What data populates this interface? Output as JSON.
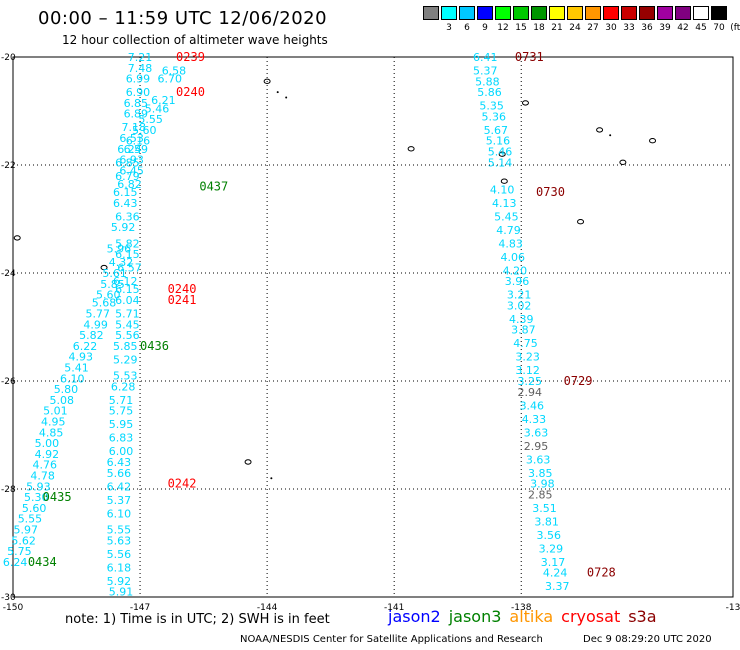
{
  "header": {
    "title": "00:00 – 11:59 UTC 12/06/2020",
    "subtitle": "12 hour collection of altimeter wave heights"
  },
  "color_scale": {
    "unit": "(ft)",
    "swatches": [
      {
        "label": "",
        "color": "#808080"
      },
      {
        "label": "3",
        "color": "#00ffff"
      },
      {
        "label": "6",
        "color": "#00c8ff"
      },
      {
        "label": "9",
        "color": "#0000ff"
      },
      {
        "label": "12",
        "color": "#00ff00"
      },
      {
        "label": "15",
        "color": "#00c800"
      },
      {
        "label": "18",
        "color": "#009600"
      },
      {
        "label": "21",
        "color": "#ffff00"
      },
      {
        "label": "24",
        "color": "#ffc800"
      },
      {
        "label": "27",
        "color": "#ff9600"
      },
      {
        "label": "30",
        "color": "#ff0000"
      },
      {
        "label": "33",
        "color": "#c80000"
      },
      {
        "label": "36",
        "color": "#960000"
      },
      {
        "label": "39",
        "color": "#a000a0"
      },
      {
        "label": "42",
        "color": "#800080"
      },
      {
        "label": "45",
        "color": "#ffffff"
      },
      {
        "label": "70",
        "color": "#000000"
      }
    ]
  },
  "axes": {
    "lon_labels": [
      "-150",
      "-147",
      "-144",
      "-141",
      "-138",
      "-13"
    ],
    "lat_labels": [
      "-20",
      "-22",
      "-24",
      "-26",
      "-28",
      "-30"
    ]
  },
  "colors": {
    "swh": "#00d8ff",
    "swh_grey": "#606060",
    "jason2": "#0000ff",
    "jason3": "#008000",
    "altika": "#ff9600",
    "cryosat": "#ff0000",
    "s3a": "#8b0000",
    "time_red": "#ff0000",
    "time_green": "#008000",
    "time_darkred": "#8b0000"
  },
  "tracks": [
    {
      "name": "track-a",
      "time_labels": [
        {
          "text": "0239",
          "lon": -146.15,
          "lat": -20.0,
          "color": "time_red"
        },
        {
          "text": "0240",
          "lon": -146.15,
          "lat": -20.65,
          "color": "time_red"
        },
        {
          "text": "0437",
          "lon": -145.6,
          "lat": -22.4,
          "color": "time_green"
        },
        {
          "text": "0240",
          "lon": -146.35,
          "lat": -24.3,
          "color": "time_red"
        },
        {
          "text": "0241",
          "lon": -146.35,
          "lat": -24.5,
          "color": "time_red"
        },
        {
          "text": "0436",
          "lon": -147.0,
          "lat": -25.35,
          "color": "time_green"
        },
        {
          "text": "0242",
          "lon": -146.35,
          "lat": -27.9,
          "color": "time_red"
        }
      ]
    }
  ],
  "swh_points": [
    {
      "text": "7.21",
      "lon": -147.0,
      "lat": -20.0
    },
    {
      "text": "6.58",
      "lon": -146.2,
      "lat": -20.25
    },
    {
      "text": "7.48",
      "lon": -147.0,
      "lat": -20.2
    },
    {
      "text": "6.99",
      "lon": -147.05,
      "lat": -20.4
    },
    {
      "text": "6.70",
      "lon": -146.3,
      "lat": -20.4
    },
    {
      "text": "6.90",
      "lon": -147.05,
      "lat": -20.65
    },
    {
      "text": "6.21",
      "lon": -146.45,
      "lat": -20.8
    },
    {
      "text": "6.85",
      "lon": -147.1,
      "lat": -20.85
    },
    {
      "text": "5.46",
      "lon": -146.6,
      "lat": -20.95
    },
    {
      "text": "6.89",
      "lon": -147.1,
      "lat": -21.05
    },
    {
      "text": "5.55",
      "lon": -146.75,
      "lat": -21.15
    },
    {
      "text": "7.18",
      "lon": -147.15,
      "lat": -21.3
    },
    {
      "text": "5.60",
      "lon": -146.9,
      "lat": -21.35
    },
    {
      "text": "6.53",
      "lon": -147.2,
      "lat": -21.5
    },
    {
      "text": "6.16",
      "lon": -147.05,
      "lat": -21.55
    },
    {
      "text": "6.24",
      "lon": -147.25,
      "lat": -21.7
    },
    {
      "text": "6.59",
      "lon": -147.1,
      "lat": -21.7
    },
    {
      "text": "6.85",
      "lon": -147.3,
      "lat": -21.95
    },
    {
      "text": "6.93",
      "lon": -147.2,
      "lat": -21.9
    },
    {
      "text": "6.45",
      "lon": -147.2,
      "lat": -22.1
    },
    {
      "text": "6.79",
      "lon": -147.3,
      "lat": -22.2
    },
    {
      "text": "6.82",
      "lon": -147.25,
      "lat": -22.35
    },
    {
      "text": "6.15",
      "lon": -147.35,
      "lat": -22.5
    },
    {
      "text": "6.43",
      "lon": -147.35,
      "lat": -22.7
    },
    {
      "text": "6.36",
      "lon": -147.3,
      "lat": -22.95
    },
    {
      "text": "5.92",
      "lon": -147.4,
      "lat": -23.15
    },
    {
      "text": "5.82",
      "lon": -147.3,
      "lat": -23.45
    },
    {
      "text": "5.96",
      "lon": -147.5,
      "lat": -23.55
    },
    {
      "text": "6.15",
      "lon": -147.3,
      "lat": -23.65
    },
    {
      "text": "4.32",
      "lon": -147.45,
      "lat": -23.8
    },
    {
      "text": "6.57",
      "lon": -147.25,
      "lat": -23.9
    },
    {
      "text": "5.61",
      "lon": -147.6,
      "lat": -24.0
    },
    {
      "text": "6.12",
      "lon": -147.35,
      "lat": -24.15
    },
    {
      "text": "5.85",
      "lon": -147.65,
      "lat": -24.2
    },
    {
      "text": "6.15",
      "lon": -147.3,
      "lat": -24.3
    },
    {
      "text": "5.60",
      "lon": -147.75,
      "lat": -24.4
    },
    {
      "text": "6.04",
      "lon": -147.3,
      "lat": -24.5
    },
    {
      "text": "5.68",
      "lon": -147.85,
      "lat": -24.55
    },
    {
      "text": "5.71",
      "lon": -147.3,
      "lat": -24.75
    },
    {
      "text": "5.77",
      "lon": -148.0,
      "lat": -24.75
    },
    {
      "text": "5.45",
      "lon": -147.3,
      "lat": -24.95
    },
    {
      "text": "4.99",
      "lon": -148.05,
      "lat": -24.95
    },
    {
      "text": "5.56",
      "lon": -147.3,
      "lat": -25.15
    },
    {
      "text": "5.82",
      "lon": -148.15,
      "lat": -25.15
    },
    {
      "text": "6.22",
      "lon": -148.3,
      "lat": -25.35
    },
    {
      "text": "5.85",
      "lon": -147.35,
      "lat": -25.35
    },
    {
      "text": "4.93",
      "lon": -148.4,
      "lat": -25.55
    },
    {
      "text": "5.29",
      "lon": -147.35,
      "lat": -25.6
    },
    {
      "text": "5.41",
      "lon": -148.5,
      "lat": -25.75
    },
    {
      "text": "5.53",
      "lon": -147.35,
      "lat": -25.9
    },
    {
      "text": "6.10",
      "lon": -148.6,
      "lat": -25.95
    },
    {
      "text": "6.28",
      "lon": -147.4,
      "lat": -26.1
    },
    {
      "text": "5.80",
      "lon": -148.75,
      "lat": -26.15
    },
    {
      "text": "5.71",
      "lon": -147.45,
      "lat": -26.35
    },
    {
      "text": "5.08",
      "lon": -148.85,
      "lat": -26.35
    },
    {
      "text": "5.75",
      "lon": -147.45,
      "lat": -26.55
    },
    {
      "text": "5.01",
      "lon": -149.0,
      "lat": -26.55
    },
    {
      "text": "4.95",
      "lon": -149.05,
      "lat": -26.75
    },
    {
      "text": "5.95",
      "lon": -147.45,
      "lat": -26.8
    },
    {
      "text": "4.85",
      "lon": -149.1,
      "lat": -26.95
    },
    {
      "text": "6.83",
      "lon": -147.45,
      "lat": -27.05
    },
    {
      "text": "5.00",
      "lon": -149.2,
      "lat": -27.15
    },
    {
      "text": "6.00",
      "lon": -147.45,
      "lat": -27.3
    },
    {
      "text": "4.92",
      "lon": -149.2,
      "lat": -27.35
    },
    {
      "text": "6.43",
      "lon": -147.5,
      "lat": -27.5
    },
    {
      "text": "4.76",
      "lon": -149.25,
      "lat": -27.55
    },
    {
      "text": "5.66",
      "lon": -147.5,
      "lat": -27.7
    },
    {
      "text": "4.78",
      "lon": -149.3,
      "lat": -27.75
    },
    {
      "text": "6.42",
      "lon": -147.5,
      "lat": -27.95
    },
    {
      "text": "5.93",
      "lon": -149.4,
      "lat": -27.95
    },
    {
      "text": "5.30",
      "lon": -149.45,
      "lat": -28.15
    },
    {
      "text": "5.37",
      "lon": -147.5,
      "lat": -28.2
    },
    {
      "text": "5.60",
      "lon": -149.5,
      "lat": -28.35
    },
    {
      "text": "6.10",
      "lon": -147.5,
      "lat": -28.45
    },
    {
      "text": "5.55",
      "lon": -149.6,
      "lat": -28.55
    },
    {
      "text": "5.55",
      "lon": -147.5,
      "lat": -28.75
    },
    {
      "text": "5.97",
      "lon": -149.7,
      "lat": -28.75
    },
    {
      "text": "5.62",
      "lon": -149.75,
      "lat": -28.95
    },
    {
      "text": "5.63",
      "lon": -147.5,
      "lat": -28.95
    },
    {
      "text": "5.75",
      "lon": -149.85,
      "lat": -29.15
    },
    {
      "text": "5.56",
      "lon": -147.5,
      "lat": -29.2
    },
    {
      "text": "6.24",
      "lon": -149.95,
      "lat": -29.35
    },
    {
      "text": "6.18",
      "lon": -147.5,
      "lat": -29.45
    },
    {
      "text": "5.92",
      "lon": -147.5,
      "lat": -29.7
    },
    {
      "text": "5.91",
      "lon": -147.45,
      "lat": -29.9
    },
    {
      "text": "6.41",
      "lon": -138.85,
      "lat": -20.0
    },
    {
      "text": "5.37",
      "lon": -138.85,
      "lat": -20.25
    },
    {
      "text": "5.88",
      "lon": -138.8,
      "lat": -20.45
    },
    {
      "text": "5.86",
      "lon": -138.75,
      "lat": -20.65
    },
    {
      "text": "5.35",
      "lon": -138.7,
      "lat": -20.9
    },
    {
      "text": "5.36",
      "lon": -138.65,
      "lat": -21.1
    },
    {
      "text": "5.67",
      "lon": -138.6,
      "lat": -21.35
    },
    {
      "text": "5.16",
      "lon": -138.55,
      "lat": -21.55
    },
    {
      "text": "5.46",
      "lon": -138.5,
      "lat": -21.75
    },
    {
      "text": "5.14",
      "lon": -138.5,
      "lat": -21.95
    },
    {
      "text": "4.10",
      "lon": -138.45,
      "lat": -22.45
    },
    {
      "text": "4.13",
      "lon": -138.4,
      "lat": -22.7
    },
    {
      "text": "5.45",
      "lon": -138.35,
      "lat": -22.95
    },
    {
      "text": "4.79",
      "lon": -138.3,
      "lat": -23.2
    },
    {
      "text": "4.83",
      "lon": -138.25,
      "lat": -23.45
    },
    {
      "text": "4.06",
      "lon": -138.2,
      "lat": -23.7
    },
    {
      "text": "4.20",
      "lon": -138.15,
      "lat": -23.95
    },
    {
      "text": "3.96",
      "lon": -138.1,
      "lat": -24.15
    },
    {
      "text": "3.21",
      "lon": -138.05,
      "lat": -24.4
    },
    {
      "text": "3.02",
      "lon": -138.05,
      "lat": -24.6
    },
    {
      "text": "4.39",
      "lon": -138.0,
      "lat": -24.85
    },
    {
      "text": "3.87",
      "lon": -137.95,
      "lat": -25.05
    },
    {
      "text": "4.75",
      "lon": -137.9,
      "lat": -25.3
    },
    {
      "text": "3.23",
      "lon": -137.85,
      "lat": -25.55
    },
    {
      "text": "3.12",
      "lon": -137.85,
      "lat": -25.8
    },
    {
      "text": "3.25",
      "lon": -137.8,
      "lat": -26.0
    },
    {
      "text": "3.46",
      "lon": -137.75,
      "lat": -26.45
    },
    {
      "text": "4.33",
      "lon": -137.7,
      "lat": -26.7
    },
    {
      "text": "3.63",
      "lon": -137.65,
      "lat": -26.95
    },
    {
      "text": "3.63",
      "lon": -137.6,
      "lat": -27.45
    },
    {
      "text": "3.85",
      "lon": -137.55,
      "lat": -27.7
    },
    {
      "text": "3.98",
      "lon": -137.5,
      "lat": -27.9
    },
    {
      "text": "3.51",
      "lon": -137.45,
      "lat": -28.35
    },
    {
      "text": "3.81",
      "lon": -137.4,
      "lat": -28.6
    },
    {
      "text": "3.56",
      "lon": -137.35,
      "lat": -28.85
    },
    {
      "text": "3.29",
      "lon": -137.3,
      "lat": -29.1
    },
    {
      "text": "3.17",
      "lon": -137.25,
      "lat": -29.35
    },
    {
      "text": "4.24",
      "lon": -137.2,
      "lat": -29.55
    },
    {
      "text": "3.37",
      "lon": -137.15,
      "lat": -29.8
    }
  ],
  "swh_points_grey": [
    {
      "text": "2.94",
      "lon": -137.8,
      "lat": -26.2
    },
    {
      "text": "2.95",
      "lon": -137.65,
      "lat": -27.2
    },
    {
      "text": "2.85",
      "lon": -137.55,
      "lat": -28.1
    }
  ],
  "time_labels_east": [
    {
      "text": "0731",
      "lon": -138.15,
      "lat": -20.0
    },
    {
      "text": "0730",
      "lon": -137.65,
      "lat": -22.5
    },
    {
      "text": "0729",
      "lon": -137.0,
      "lat": -26.0
    },
    {
      "text": "0728",
      "lon": -136.45,
      "lat": -29.55
    }
  ],
  "time_labels_green_west": [
    {
      "text": "0435",
      "lon": -149.3,
      "lat": -28.15
    },
    {
      "text": "0434",
      "lon": -149.65,
      "lat": -29.35
    }
  ],
  "islands": [
    {
      "lon": -144.0,
      "lat": -20.45,
      "kind": "ring"
    },
    {
      "lon": -143.75,
      "lat": -20.65,
      "kind": "dot"
    },
    {
      "lon": -143.55,
      "lat": -20.75,
      "kind": "dot"
    },
    {
      "lon": -140.6,
      "lat": -21.7,
      "kind": "ring"
    },
    {
      "lon": -137.9,
      "lat": -20.85,
      "kind": "ring"
    },
    {
      "lon": -136.15,
      "lat": -21.35,
      "kind": "ring"
    },
    {
      "lon": -135.9,
      "lat": -21.45,
      "kind": "dot"
    },
    {
      "lon": -135.6,
      "lat": -21.95,
      "kind": "ring"
    },
    {
      "lon": -134.9,
      "lat": -21.55,
      "kind": "ring"
    },
    {
      "lon": -138.45,
      "lat": -21.8,
      "kind": "ring"
    },
    {
      "lon": -138.4,
      "lat": -22.3,
      "kind": "ring"
    },
    {
      "lon": -136.6,
      "lat": -23.05,
      "kind": "ring"
    },
    {
      "lon": -149.9,
      "lat": -23.35,
      "kind": "ring"
    },
    {
      "lon": -147.85,
      "lat": -23.9,
      "kind": "ring"
    },
    {
      "lon": -144.45,
      "lat": -27.5,
      "kind": "ring"
    },
    {
      "lon": -143.9,
      "lat": -27.8,
      "kind": "dot"
    }
  ],
  "note": "note:  1) Time is in UTC;  2) SWH is in feet",
  "satellite_legend": [
    {
      "name": "jason2",
      "color_key": "jason2"
    },
    {
      "name": "jason3",
      "color_key": "jason3"
    },
    {
      "name": "altika",
      "color_key": "altika"
    },
    {
      "name": "cryosat",
      "color_key": "cryosat"
    },
    {
      "name": "s3a",
      "color_key": "s3a"
    }
  ],
  "footer": {
    "credit": "NOAA/NESDIS Center for Satellite Applications and Research",
    "timestamp": "Dec  9 08:29:20 UTC 2020"
  }
}
